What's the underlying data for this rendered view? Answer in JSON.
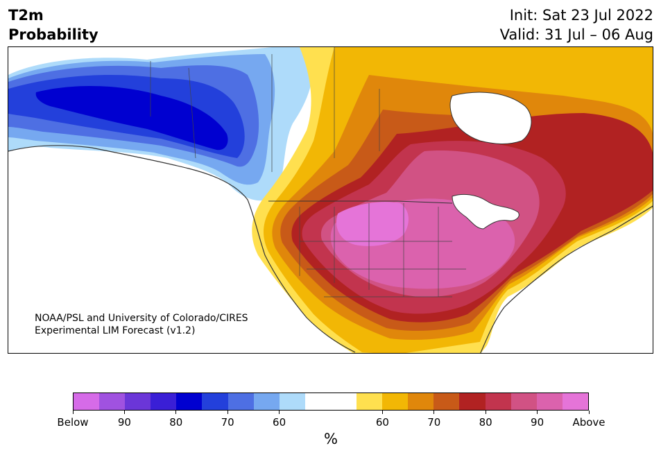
{
  "header": {
    "title_line1": "T2m",
    "title_line2": "Probability",
    "init": "Init: Sat 23 Jul 2022",
    "valid": "Valid: 31 Jul – 06 Aug"
  },
  "map": {
    "credit_line1": "NOAA/PSL and University of Colorado/CIRES",
    "credit_line2": "Experimental LIM Forecast (v1.2)"
  },
  "colorbar": {
    "colors": [
      "#d66be8",
      "#a052e0",
      "#6b36d8",
      "#3a1fd6",
      "#0000d0",
      "#2340db",
      "#4e6fe3",
      "#76a8f0",
      "#aedbfa",
      "#ffffff",
      "#ffffff",
      "#ffe04f",
      "#f2b705",
      "#e0870b",
      "#c85a18",
      "#b12222",
      "#c2344e",
      "#d15284",
      "#db62ad",
      "#e574d8"
    ],
    "tick_labels": [
      "Below",
      "90",
      "80",
      "70",
      "60",
      "60",
      "70",
      "80",
      "90",
      "Above"
    ],
    "unit_label": "%"
  }
}
